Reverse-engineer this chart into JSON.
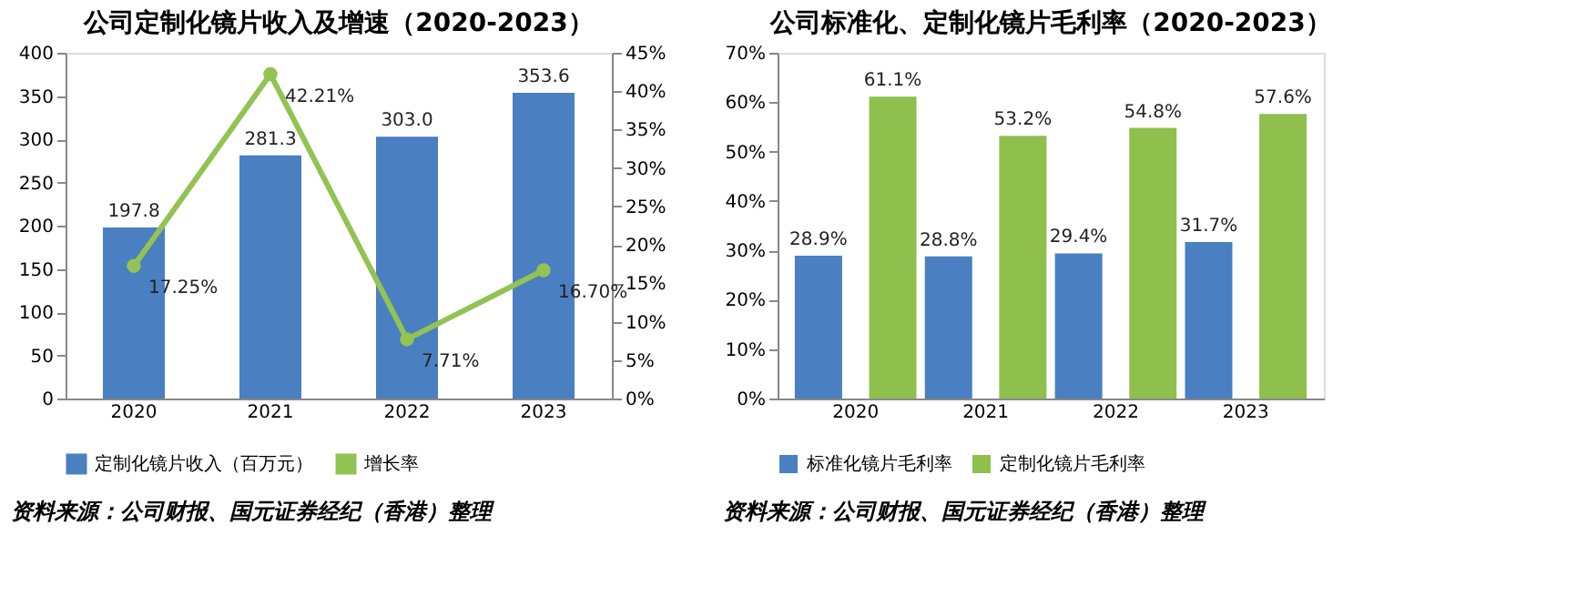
{
  "chart_data": [
    {
      "type": "bar",
      "title": "公司定制化镜片收入及增速（2020-2023）",
      "categories": [
        "2020",
        "2021",
        "2022",
        "2023"
      ],
      "ylim": [
        0,
        400
      ],
      "yticks": [
        0,
        50,
        100,
        150,
        200,
        250,
        300,
        350,
        400
      ],
      "y2lim": [
        0,
        45
      ],
      "y2ticks": [
        {
          "value": 0,
          "label": "0%"
        },
        {
          "value": 5,
          "label": "5%"
        },
        {
          "value": 10,
          "label": "10%"
        },
        {
          "value": 15,
          "label": "15%"
        },
        {
          "value": 20,
          "label": "20%"
        },
        {
          "value": 25,
          "label": "25%"
        },
        {
          "value": 30,
          "label": "30%"
        },
        {
          "value": 35,
          "label": "35%"
        },
        {
          "value": 40,
          "label": "40%"
        },
        {
          "value": 45,
          "label": "45%"
        }
      ],
      "grid": false,
      "legend": "bottom",
      "annotations": [
        "资料来源：公司财报、国元证券经纪（香港）整理"
      ],
      "series": [
        {
          "name": "定制化镜片收入（百万元）",
          "color": "#4a7fc1",
          "values": [
            197.8,
            281.3,
            303.0,
            353.6
          ],
          "value_labels": [
            "197.8",
            "281.3",
            "303.0",
            "353.6"
          ]
        },
        {
          "name": "增长率",
          "type": "line",
          "axis": "y2",
          "marker": "circle",
          "color": "#92c353",
          "values": [
            17.25,
            42.21,
            7.71,
            16.7
          ],
          "value_labels": [
            "17.25%",
            "42.21%",
            "7.71%",
            "16.70%"
          ]
        }
      ]
    },
    {
      "type": "bar",
      "title": "公司标准化、定制化镜片毛利率（2020-2023）",
      "categories": [
        "2020",
        "2021",
        "2022",
        "2023"
      ],
      "ylim": [
        0,
        70
      ],
      "yticks": [
        {
          "value": 0,
          "label": "0%"
        },
        {
          "value": 10,
          "label": "10%"
        },
        {
          "value": 20,
          "label": "20%"
        },
        {
          "value": 30,
          "label": "30%"
        },
        {
          "value": 40,
          "label": "40%"
        },
        {
          "value": 50,
          "label": "50%"
        },
        {
          "value": 60,
          "label": "60%"
        },
        {
          "value": 70,
          "label": "70%"
        }
      ],
      "grid": false,
      "legend": "bottom",
      "annotations": [
        "资料来源：公司财报、国元证券经纪（香港）整理"
      ],
      "series": [
        {
          "name": "标准化镜片毛利率",
          "color": "#4a7fc1",
          "values": [
            28.9,
            28.8,
            29.4,
            31.7
          ],
          "value_labels": [
            "28.9%",
            "28.8%",
            "29.4%",
            "31.7%"
          ]
        },
        {
          "name": "定制化镜片毛利率",
          "color": "#8fbf4d",
          "values": [
            61.1,
            53.2,
            54.8,
            57.6
          ],
          "value_labels": [
            "61.1%",
            "53.2%",
            "54.8%",
            "57.6%"
          ]
        }
      ]
    }
  ]
}
